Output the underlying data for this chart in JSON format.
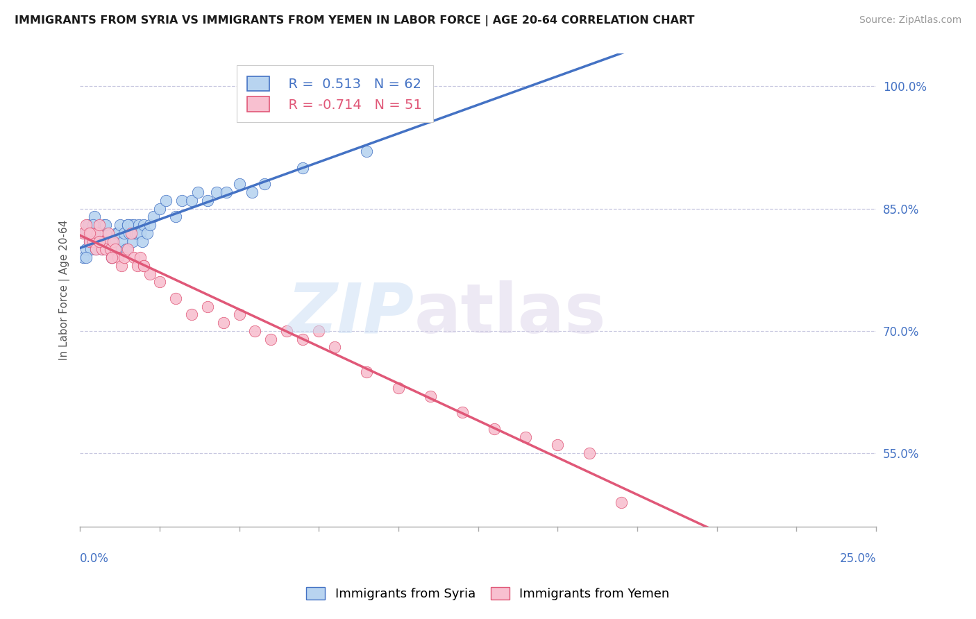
{
  "title": "IMMIGRANTS FROM SYRIA VS IMMIGRANTS FROM YEMEN IN LABOR FORCE | AGE 20-64 CORRELATION CHART",
  "source": "Source: ZipAtlas.com",
  "ylabel_ticks": [
    55.0,
    70.0,
    85.0,
    100.0
  ],
  "ylabel_labels": [
    "55.0%",
    "70.0%",
    "85.0%",
    "100.0%"
  ],
  "xlim": [
    0.0,
    25.0
  ],
  "ylim": [
    46.0,
    104.0
  ],
  "syria_color": "#b8d4f0",
  "syria_color_dark": "#4472c4",
  "yemen_color": "#f8c0d0",
  "yemen_color_dark": "#e05878",
  "syria_R": 0.513,
  "syria_N": 62,
  "yemen_R": -0.714,
  "yemen_N": 51,
  "background": "#ffffff",
  "grid_color": "#c8c8e0",
  "syria_scatter_x": [
    0.1,
    0.15,
    0.2,
    0.25,
    0.3,
    0.35,
    0.4,
    0.45,
    0.5,
    0.55,
    0.6,
    0.65,
    0.7,
    0.75,
    0.8,
    0.85,
    0.9,
    0.95,
    1.0,
    1.05,
    1.1,
    1.15,
    1.2,
    1.25,
    1.3,
    1.35,
    1.4,
    1.45,
    1.5,
    1.55,
    1.6,
    1.65,
    1.7,
    1.75,
    1.8,
    1.85,
    1.9,
    1.95,
    2.0,
    2.1,
    2.2,
    2.3,
    2.5,
    2.7,
    3.0,
    3.2,
    3.5,
    3.7,
    4.0,
    4.3,
    4.6,
    5.0,
    5.4,
    5.8,
    0.2,
    0.4,
    0.6,
    0.8,
    1.0,
    1.5,
    7.0,
    9.0
  ],
  "syria_scatter_y": [
    79,
    82,
    80,
    83,
    81,
    80,
    82,
    84,
    80,
    82,
    81,
    82,
    80,
    83,
    82,
    80,
    81,
    80,
    79,
    81,
    80,
    82,
    82,
    83,
    80,
    81,
    82,
    80,
    83,
    82,
    83,
    81,
    83,
    82,
    82,
    83,
    82,
    81,
    83,
    82,
    83,
    84,
    85,
    86,
    84,
    86,
    86,
    87,
    86,
    87,
    87,
    88,
    87,
    88,
    79,
    83,
    81,
    83,
    79,
    83,
    90,
    92
  ],
  "yemen_scatter_x": [
    0.1,
    0.2,
    0.3,
    0.35,
    0.4,
    0.5,
    0.55,
    0.6,
    0.7,
    0.75,
    0.8,
    0.9,
    0.95,
    1.0,
    1.05,
    1.1,
    1.2,
    1.3,
    1.4,
    1.5,
    1.6,
    1.7,
    1.8,
    1.9,
    2.0,
    2.2,
    2.5,
    3.0,
    3.5,
    4.0,
    4.5,
    5.0,
    5.5,
    6.0,
    6.5,
    7.0,
    7.5,
    8.0,
    9.0,
    10.0,
    11.0,
    12.0,
    13.0,
    14.0,
    15.0,
    16.0,
    17.0,
    0.3,
    0.6,
    1.0,
    2.0
  ],
  "yemen_scatter_y": [
    82,
    83,
    81,
    82,
    81,
    80,
    82,
    83,
    80,
    81,
    80,
    82,
    80,
    79,
    81,
    80,
    79,
    78,
    79,
    80,
    82,
    79,
    78,
    79,
    78,
    77,
    76,
    74,
    72,
    73,
    71,
    72,
    70,
    69,
    70,
    69,
    70,
    68,
    65,
    63,
    62,
    60,
    58,
    57,
    56,
    55,
    49,
    82,
    81,
    79,
    78
  ]
}
